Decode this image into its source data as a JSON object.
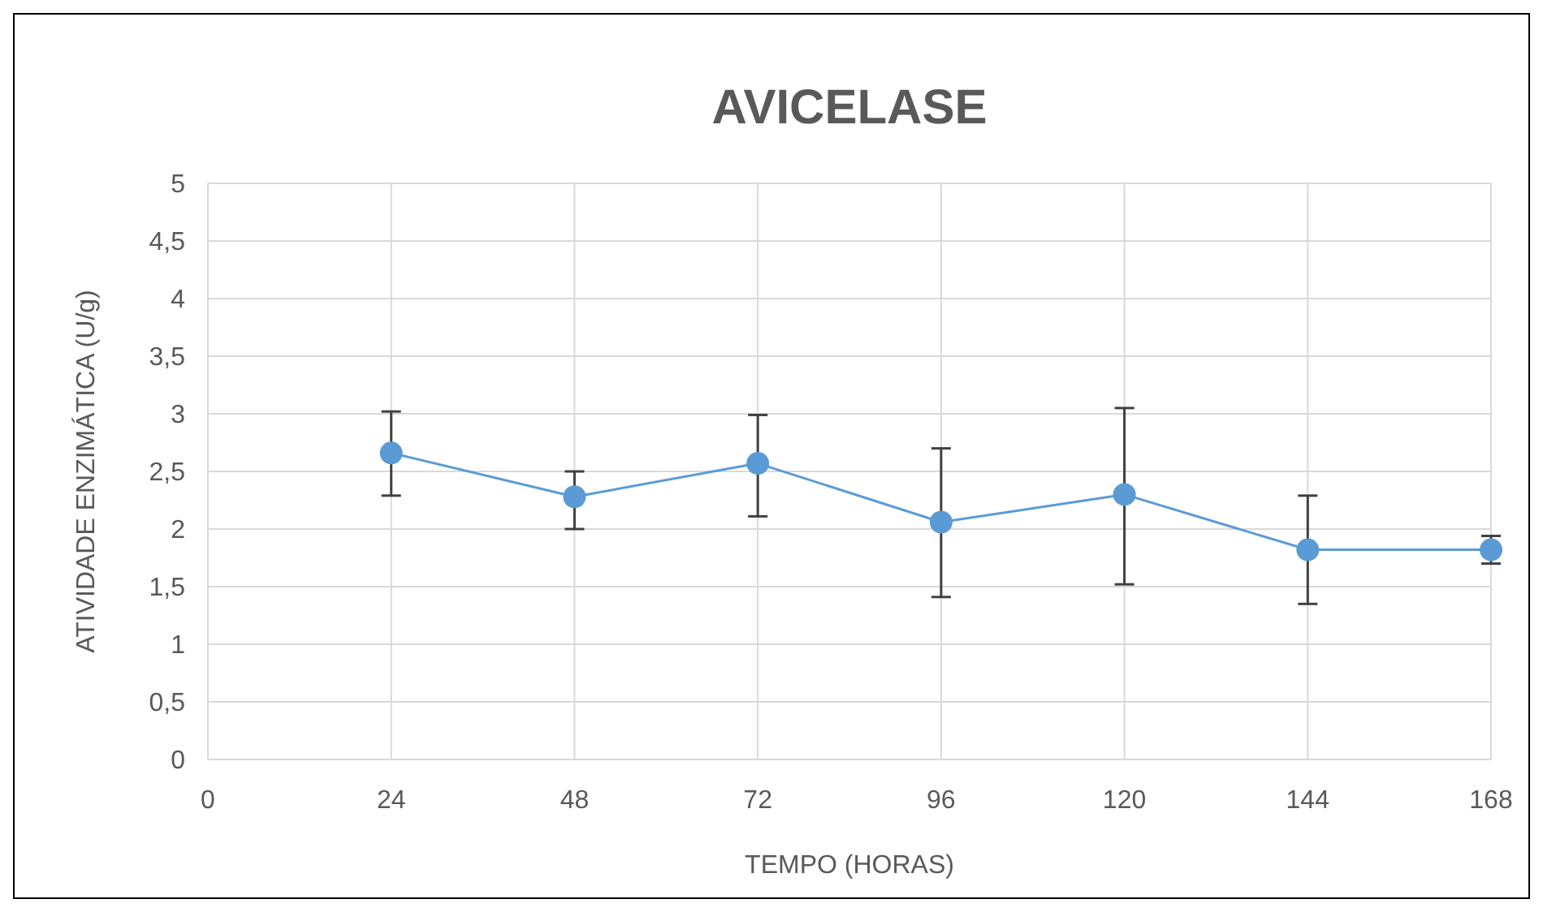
{
  "chart_data": {
    "type": "line",
    "title": "AVICELASE",
    "xlabel": "TEMPO (HORAS)",
    "ylabel": "ATIVIDADE ENZIMÁTICA (U/g)",
    "x": [
      24,
      48,
      72,
      96,
      120,
      144,
      168
    ],
    "values": [
      2.66,
      2.28,
      2.57,
      2.06,
      2.3,
      1.82,
      1.82
    ],
    "errors": [
      [
        2.29,
        3.02
      ],
      [
        2.0,
        2.5
      ],
      [
        2.11,
        2.99
      ],
      [
        1.41,
        2.7
      ],
      [
        1.52,
        3.05
      ],
      [
        1.35,
        2.29
      ],
      [
        1.7,
        1.94
      ]
    ],
    "color": "#5b9bd5",
    "marker": "circle",
    "xlim": [
      0,
      168
    ],
    "xticks": [
      0,
      24,
      48,
      72,
      96,
      120,
      144,
      168
    ],
    "ylim": [
      0,
      5
    ],
    "yticks": [
      0,
      {
        "value": 0.5,
        "label": "0,5"
      },
      1,
      {
        "value": 1.5,
        "label": "1,5"
      },
      2,
      {
        "value": 2.5,
        "label": "2,5"
      },
      3,
      {
        "value": 3.5,
        "label": "3,5"
      },
      4,
      {
        "value": 4.5,
        "label": "4,5"
      },
      5
    ],
    "grid": true
  }
}
